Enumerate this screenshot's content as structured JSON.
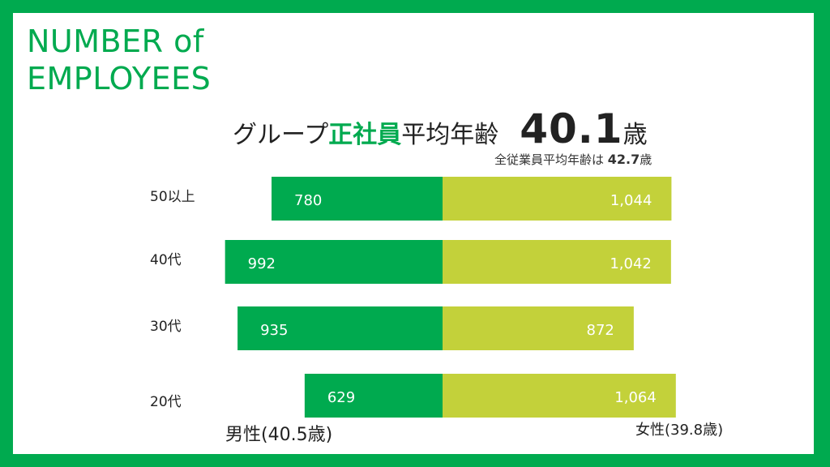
{
  "title_line1": "NUMBER  of",
  "title_line2": "EMPLOYEES",
  "headline": {
    "prefix": "グループ",
    "accent": "正社員",
    "suffix": "平均年齢",
    "value": "40.1",
    "unit": "歳"
  },
  "sub": {
    "text": "全従業員平均年齢は ",
    "value": "42.7",
    "unit": "歳"
  },
  "footer": {
    "male": "男性(40.5歳)",
    "female": "女性(39.8歳)"
  },
  "colors": {
    "male": "#00AA4F",
    "female": "#C3D13A",
    "frame": "#00AA4F"
  },
  "chart_data": {
    "type": "bar",
    "categories": [
      "50以上",
      "40代",
      "30代",
      "20代"
    ],
    "series": [
      {
        "values": [
          780,
          992,
          935,
          629
        ]
      },
      {
        "values": [
          1044,
          1042,
          872,
          1064
        ]
      }
    ],
    "value_labels": [
      [
        "780",
        "992",
        "935",
        "629"
      ],
      [
        "1,044",
        "1,042",
        "872",
        "1,064"
      ]
    ],
    "legend": "none",
    "grid": false
  }
}
